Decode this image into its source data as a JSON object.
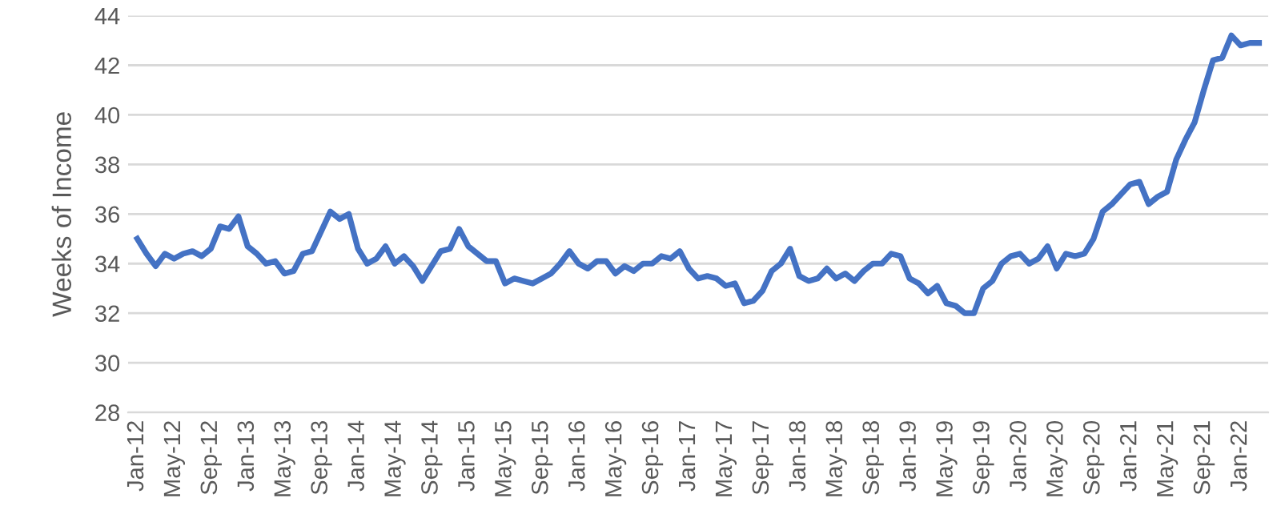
{
  "chart_data": {
    "type": "line",
    "ylabel": "Weeks of Income",
    "categories": [
      "Jan-12",
      null,
      null,
      null,
      "May-12",
      null,
      null,
      null,
      "Sep-12",
      null,
      null,
      null,
      "Jan-13",
      null,
      null,
      null,
      "May-13",
      null,
      null,
      null,
      "Sep-13",
      null,
      null,
      null,
      "Jan-14",
      null,
      null,
      null,
      "May-14",
      null,
      null,
      null,
      "Sep-14",
      null,
      null,
      null,
      "Jan-15",
      null,
      null,
      null,
      "May-15",
      null,
      null,
      null,
      "Sep-15",
      null,
      null,
      null,
      "Jan-16",
      null,
      null,
      null,
      "May-16",
      null,
      null,
      null,
      "Sep-16",
      null,
      null,
      null,
      "Jan-17",
      null,
      null,
      null,
      "May-17",
      null,
      null,
      null,
      "Sep-17",
      null,
      null,
      null,
      "Jan-18",
      null,
      null,
      null,
      "May-18",
      null,
      null,
      null,
      "Sep-18",
      null,
      null,
      null,
      "Jan-19",
      null,
      null,
      null,
      "May-19",
      null,
      null,
      null,
      "Sep-19",
      null,
      null,
      null,
      "Jan-20",
      null,
      null,
      null,
      "May-20",
      null,
      null,
      null,
      "Sep-20",
      null,
      null,
      null,
      "Jan-21",
      null,
      null,
      null,
      "May-21",
      null,
      null,
      null,
      "Sep-21",
      null,
      null,
      null,
      "Jan-22",
      null,
      null
    ],
    "series": [
      {
        "color": "#4472c4",
        "values": [
          35.0,
          34.4,
          33.9,
          34.4,
          34.2,
          34.4,
          34.5,
          34.3,
          34.6,
          35.5,
          35.4,
          35.9,
          34.7,
          34.4,
          34.0,
          34.1,
          33.6,
          33.7,
          34.4,
          34.5,
          35.3,
          36.1,
          35.8,
          36.0,
          34.6,
          34.0,
          34.2,
          34.7,
          34.0,
          34.3,
          33.9,
          33.3,
          33.9,
          34.5,
          34.6,
          35.4,
          34.7,
          34.4,
          34.1,
          34.1,
          33.2,
          33.4,
          33.3,
          33.2,
          33.4,
          33.6,
          34.0,
          34.5,
          34.0,
          33.8,
          34.1,
          34.1,
          33.6,
          33.9,
          33.7,
          34.0,
          34.0,
          34.3,
          34.2,
          34.5,
          33.8,
          33.4,
          33.5,
          33.4,
          33.1,
          33.2,
          32.4,
          32.5,
          32.9,
          33.7,
          34.0,
          34.6,
          33.5,
          33.3,
          33.4,
          33.8,
          33.4,
          33.6,
          33.3,
          33.7,
          34.0,
          34.0,
          34.4,
          34.3,
          33.4,
          33.2,
          32.8,
          33.1,
          32.4,
          32.3,
          32.0,
          32.0,
          33.0,
          33.3,
          34.0,
          34.3,
          34.4,
          34.0,
          34.2,
          34.7,
          33.8,
          34.4,
          34.3,
          34.4,
          35.0,
          36.1,
          36.4,
          36.8,
          37.2,
          37.3,
          36.4,
          36.7,
          36.9,
          38.2,
          39.0,
          39.7,
          41.0,
          42.2,
          42.3,
          43.2,
          42.8,
          42.9,
          42.9
        ]
      }
    ],
    "ylim": [
      28,
      44
    ],
    "yticks": [
      28,
      30,
      32,
      34,
      36,
      38,
      40,
      42,
      44
    ],
    "grid": "y",
    "marker": "none",
    "line_style": "solid"
  }
}
